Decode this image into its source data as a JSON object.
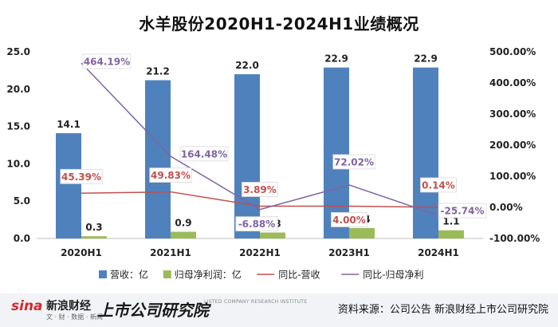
{
  "chart_data": {
    "type": "bar",
    "title": "水羊股份2020H1-2024H1业绩概况",
    "categories": [
      "2020H1",
      "2021H1",
      "2022H1",
      "2023H1",
      "2024H1"
    ],
    "series": [
      {
        "name": "营收：亿",
        "kind": "bar",
        "axis": "left",
        "color": "#4f81bd",
        "values": [
          14.1,
          21.2,
          22.0,
          22.9,
          22.9
        ],
        "labels": [
          "14.1",
          "21.2",
          "22.0",
          "22.9",
          "22.9"
        ]
      },
      {
        "name": "归母净利润：亿",
        "kind": "bar",
        "axis": "left",
        "color": "#9bbb59",
        "values": [
          0.3,
          0.9,
          0.8,
          1.4,
          1.1
        ],
        "labels": [
          "0.3",
          "0.9",
          "0.8",
          "1.4",
          "1.1"
        ]
      },
      {
        "name": "同比-营收",
        "kind": "line",
        "axis": "right",
        "color": "#c0504d",
        "values": [
          45.39,
          49.83,
          3.89,
          4.0,
          0.14
        ],
        "labels": [
          "45.39%",
          "49.83%",
          "3.89%",
          "4.00%",
          "0.14%"
        ]
      },
      {
        "name": "同比-归母净利",
        "kind": "line",
        "axis": "right",
        "color": "#8064a2",
        "values": [
          464.19,
          164.48,
          -6.88,
          72.02,
          -25.74
        ],
        "labels": [
          "464.19%",
          "164.48%",
          "-6.88%",
          "72.02%",
          "-25.74%"
        ]
      }
    ],
    "y_left": {
      "min": 0,
      "max": 25,
      "ticks": [
        "0.0",
        "5.0",
        "10.0",
        "15.0",
        "20.0",
        "25.0"
      ]
    },
    "y_right": {
      "min": -100,
      "max": 500,
      "ticks": [
        "-100.00%",
        "0.00%",
        "100.00%",
        "200.00%",
        "300.00%",
        "400.00%",
        "500.00%"
      ]
    },
    "grid": false,
    "legend_position": "bottom"
  },
  "footer": {
    "sina_logo": "sina",
    "sina_name": "新浪财经",
    "sina_sub": "文 · 财 · 数据 · 新闻",
    "institute": "上市公司研究院",
    "institute_en": "LISTED COMPANY RESEARCH INSTITUTE",
    "source": "资料来源：公司公告 新浪财经上市公司研究院"
  }
}
